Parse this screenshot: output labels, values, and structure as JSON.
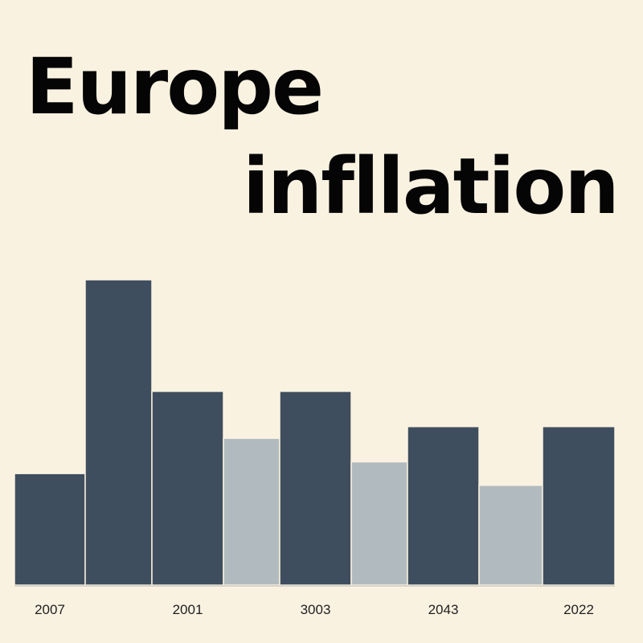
{
  "chart_data": {
    "type": "bar",
    "title_lines": [
      "Europe",
      "infllation"
    ],
    "categories": [
      "2007",
      "",
      "2001",
      "",
      "3003",
      "",
      "2043",
      "",
      "2022"
    ],
    "values": [
      19,
      52,
      33,
      25,
      33,
      21,
      27,
      17,
      27
    ],
    "bar_colors": [
      "#3f4e5e",
      "#3f4e5e",
      "#3f4e5e",
      "#b1bbbf",
      "#3f4e5e",
      "#b1bbbf",
      "#3f4e5e",
      "#b1bbbf",
      "#3f4e5e"
    ],
    "xlabel": "",
    "ylabel": "",
    "ylim": [
      0,
      75
    ],
    "grid": false,
    "legend": "none"
  },
  "colors": {
    "background": "#faf2e1",
    "dark_bar": "#3f4e5e",
    "light_bar": "#b1bbbf",
    "title_text": "#050505",
    "axis": "#d9d4c9"
  }
}
